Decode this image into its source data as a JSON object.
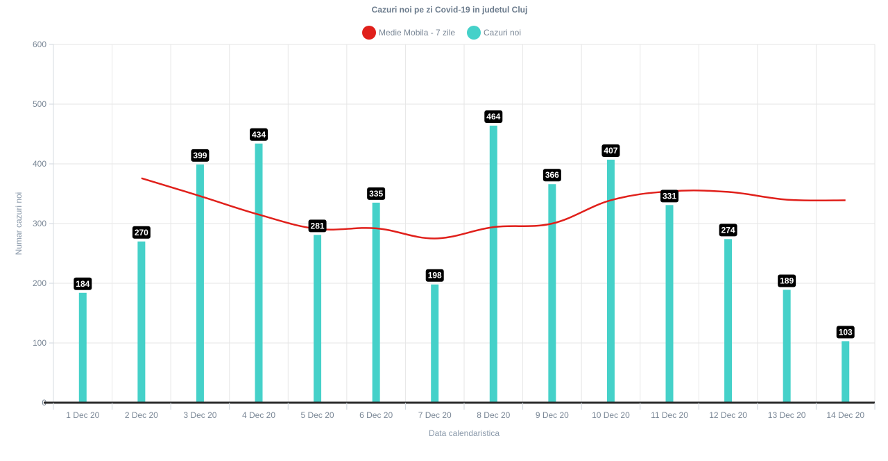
{
  "chart_data": {
    "type": "bar",
    "title": "Cazuri noi pe zi Covid-19 in judetul Cluj",
    "xlabel": "Data calendaristica",
    "ylabel": "Numar cazuri noi",
    "ylim": [
      0,
      600
    ],
    "yticks": [
      0,
      100,
      200,
      300,
      400,
      500,
      600
    ],
    "grid": true,
    "legend_position": "top-center",
    "categories": [
      "1 Dec 20",
      "2 Dec 20",
      "3 Dec 20",
      "4 Dec 20",
      "5 Dec 20",
      "6 Dec 20",
      "7 Dec 20",
      "8 Dec 20",
      "9 Dec 20",
      "10 Dec 20",
      "11 Dec 20",
      "12 Dec 20",
      "13 Dec 20",
      "14 Dec 20"
    ],
    "series": [
      {
        "name": "Medie Mobila - 7 zile",
        "type": "line",
        "color": "#e0201b",
        "values": [
          null,
          376,
          346,
          315,
          291,
          292,
          275,
          294,
          300,
          339,
          354,
          353,
          340,
          339
        ]
      },
      {
        "name": "Cazuri noi",
        "type": "bar",
        "color": "#45d1c9",
        "values": [
          184,
          270,
          399,
          434,
          281,
          335,
          198,
          464,
          366,
          407,
          331,
          274,
          189,
          103
        ]
      }
    ]
  }
}
